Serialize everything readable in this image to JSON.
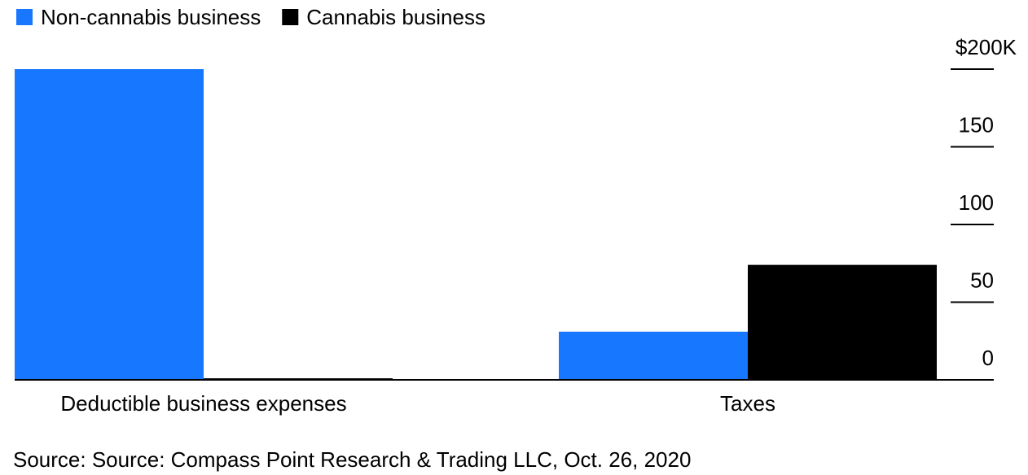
{
  "chart_data": {
    "type": "bar",
    "categories": [
      "Deductible business expenses",
      "Taxes"
    ],
    "series": [
      {
        "name": "Non-cannabis business",
        "color": "#1777ff",
        "values": [
          200,
          31
        ]
      },
      {
        "name": "Cannabis business",
        "color": "#000000",
        "values": [
          1,
          74
        ]
      }
    ],
    "ylim": [
      0,
      200
    ],
    "yticks": [
      0,
      50,
      100,
      150,
      {
        "value": 200,
        "label": "$200K"
      }
    ],
    "source": "Source: Source: Compass Point Research & Trading LLC, Oct. 26, 2020"
  }
}
